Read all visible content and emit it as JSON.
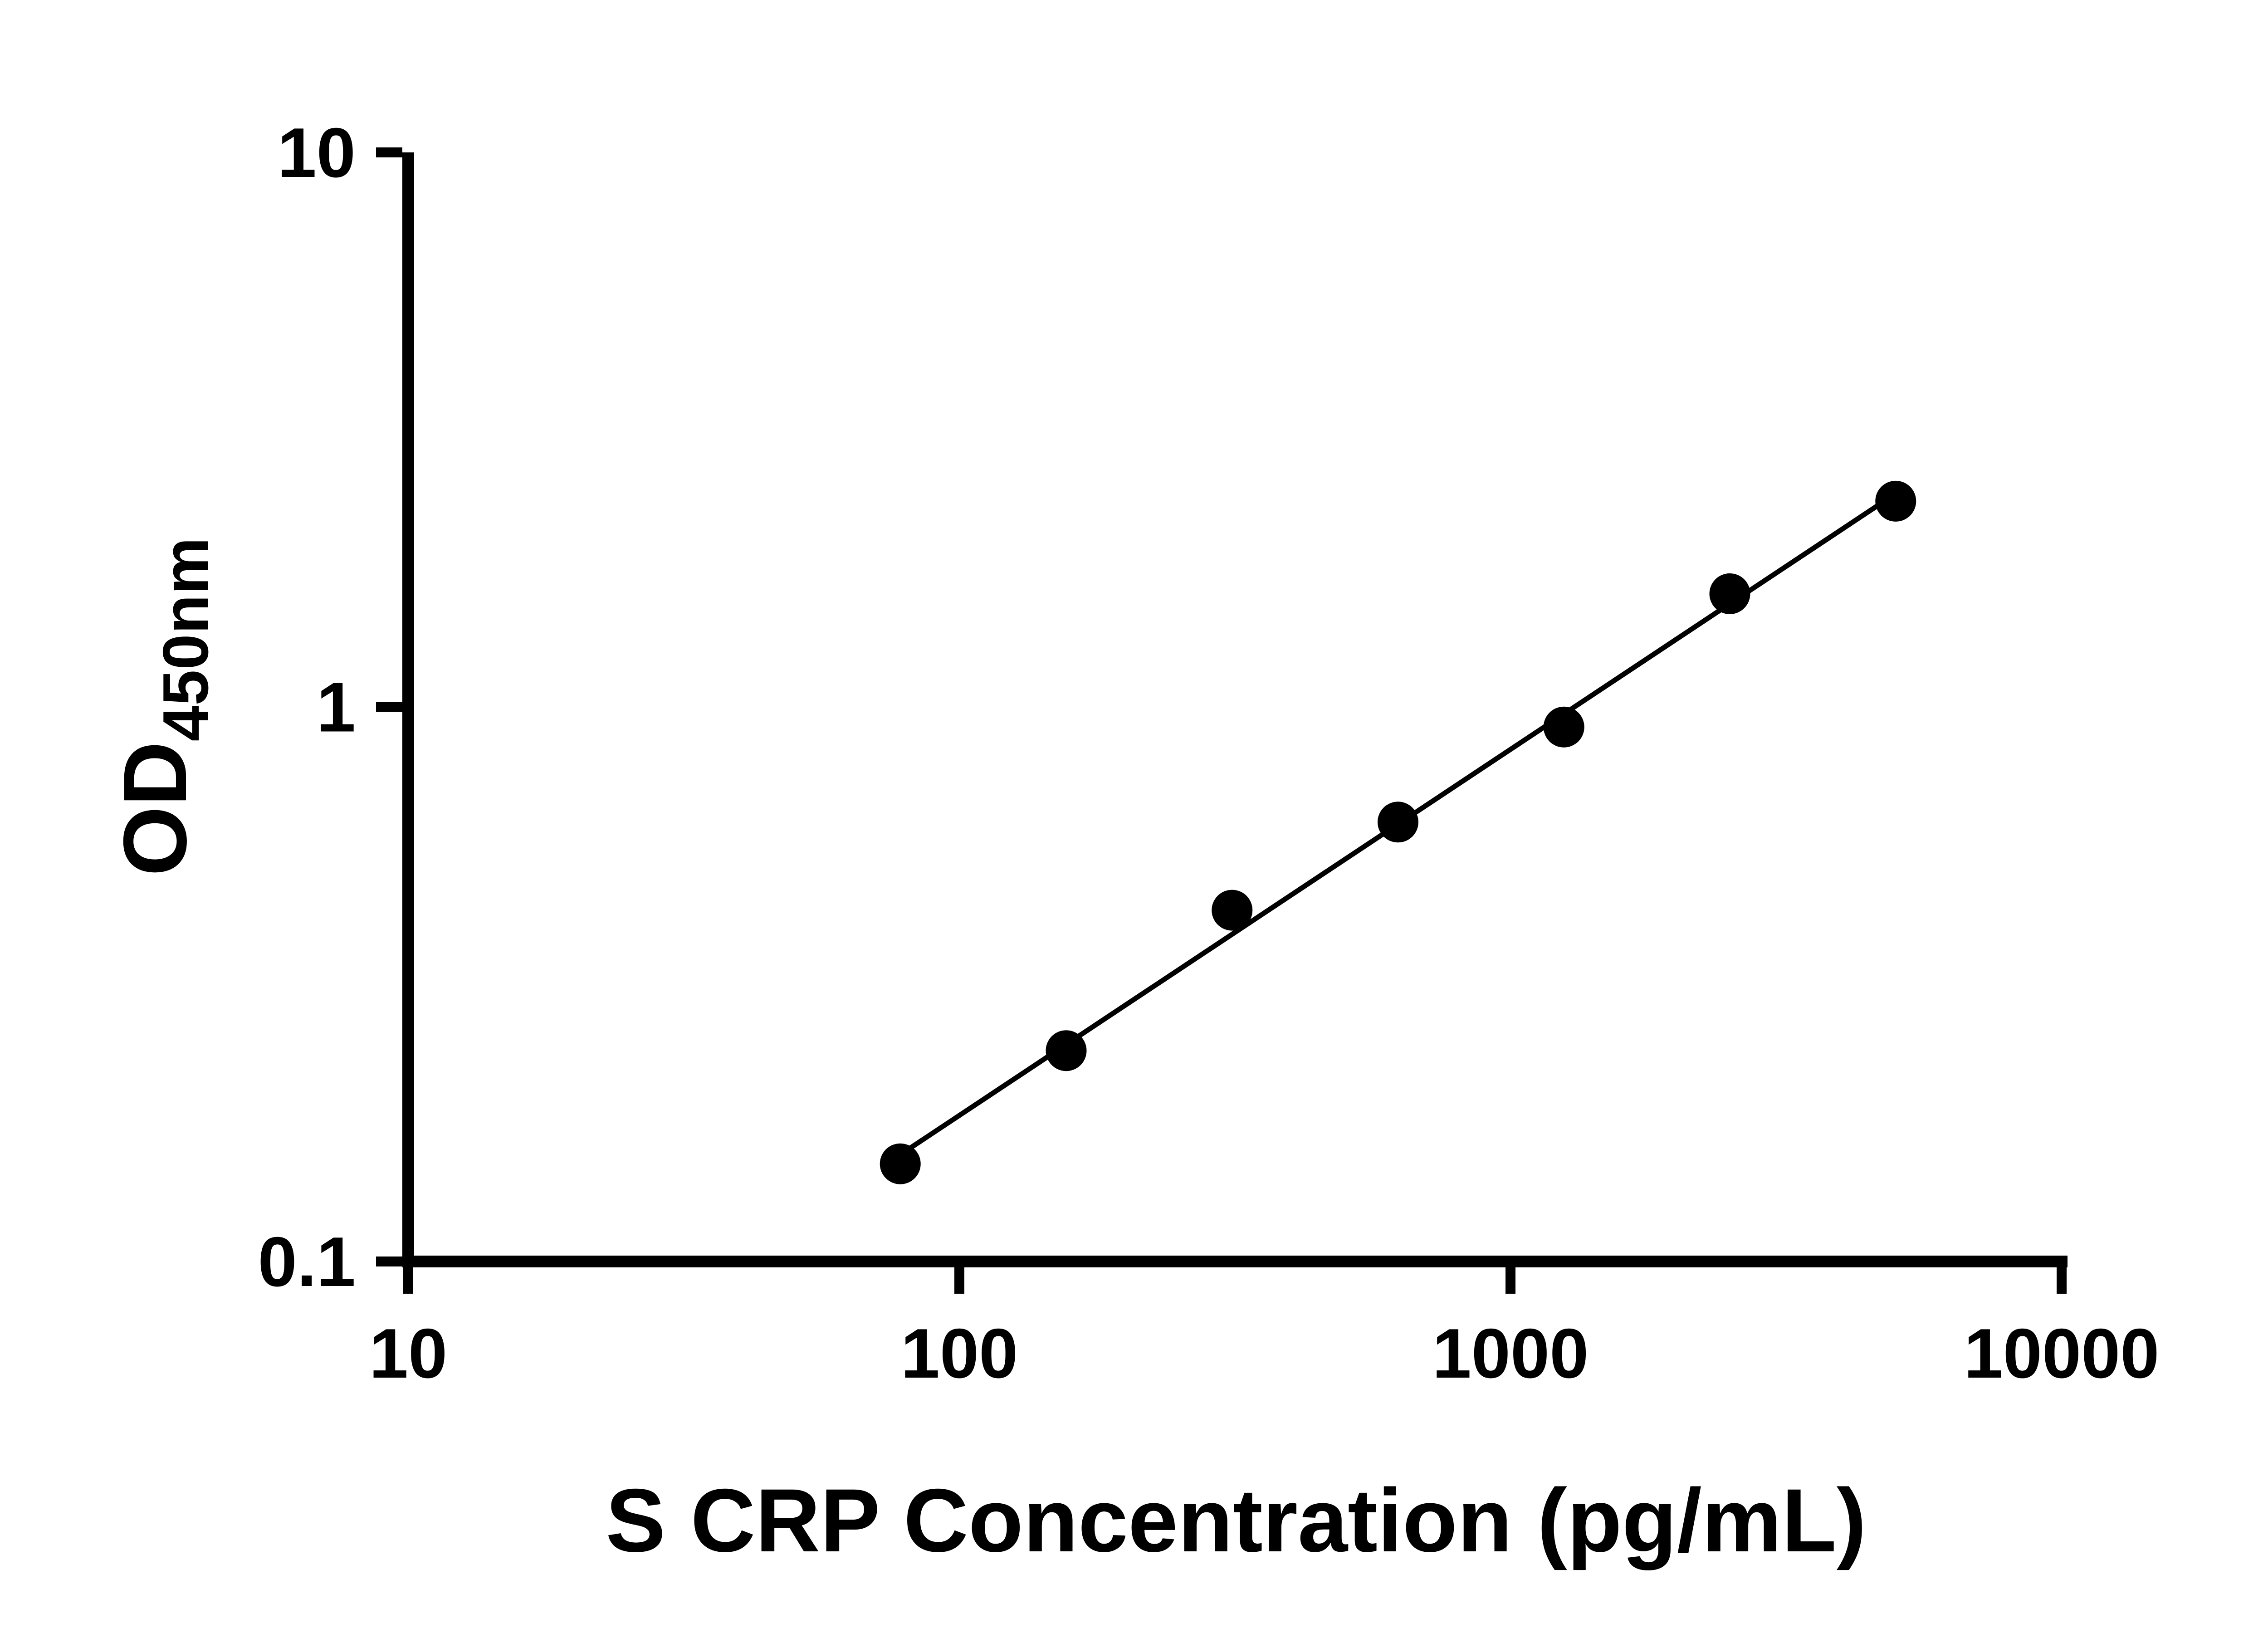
{
  "chart_data": {
    "type": "scatter",
    "title": "",
    "xlabel": "S CRP Concentration (pg/mL)",
    "ylabel_main": "OD",
    "ylabel_sub": "450nm",
    "x_scale": "log",
    "y_scale": "log",
    "xlim": [
      10,
      10000
    ],
    "ylim": [
      0.1,
      10
    ],
    "x_ticks": [
      10,
      100,
      1000,
      10000
    ],
    "x_tick_labels": [
      "10",
      "100",
      "1000",
      "10000"
    ],
    "y_ticks": [
      0.1,
      1,
      10
    ],
    "y_tick_labels": [
      "0.1",
      "1",
      "10"
    ],
    "grid": false,
    "legend": null,
    "points": [
      {
        "x": 78.125,
        "y": 0.15
      },
      {
        "x": 156.25,
        "y": 0.24
      },
      {
        "x": 312.5,
        "y": 0.43
      },
      {
        "x": 625,
        "y": 0.62
      },
      {
        "x": 1250,
        "y": 0.92
      },
      {
        "x": 2500,
        "y": 1.6
      },
      {
        "x": 5000,
        "y": 2.35
      }
    ],
    "trendline": {
      "type": "linear_loglog",
      "x_start": 78.125,
      "x_end": 5000
    },
    "colors": {
      "marker": "#000000",
      "line": "#000000",
      "axis": "#000000",
      "text": "#000000",
      "background": "#ffffff"
    }
  }
}
